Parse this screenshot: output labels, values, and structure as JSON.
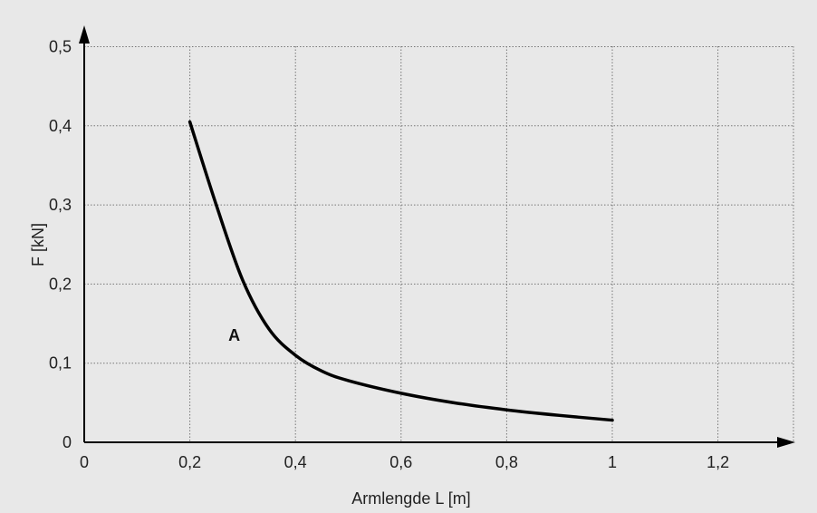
{
  "chart_data": {
    "type": "line",
    "title": "",
    "xlabel": "Armlengde L [m]",
    "ylabel": "F [kN]",
    "xlim": [
      0,
      1.3
    ],
    "ylim": [
      0,
      0.5
    ],
    "x_ticks": [
      0,
      0.2,
      0.4,
      0.6,
      0.8,
      1,
      1.2
    ],
    "x_tick_labels": [
      "0",
      "0,2",
      "0,4",
      "0,6",
      "0,8",
      "1",
      "1,2"
    ],
    "y_ticks": [
      0,
      0.1,
      0.2,
      0.3,
      0.4,
      0.5
    ],
    "y_tick_labels": [
      "0",
      "0,1",
      "0,2",
      "0,3",
      "0,4",
      "0,5"
    ],
    "grid": true,
    "series": [
      {
        "x": [
          0.2,
          0.25,
          0.3,
          0.35,
          0.4,
          0.45,
          0.5,
          0.6,
          0.7,
          0.8,
          0.9,
          1.0
        ],
        "y": [
          0.405,
          0.3,
          0.205,
          0.143,
          0.11,
          0.09,
          0.078,
          0.062,
          0.05,
          0.041,
          0.034,
          0.028
        ]
      }
    ],
    "annotations": [
      {
        "text": "A",
        "x": 0.285,
        "y": 0.135
      }
    ]
  }
}
